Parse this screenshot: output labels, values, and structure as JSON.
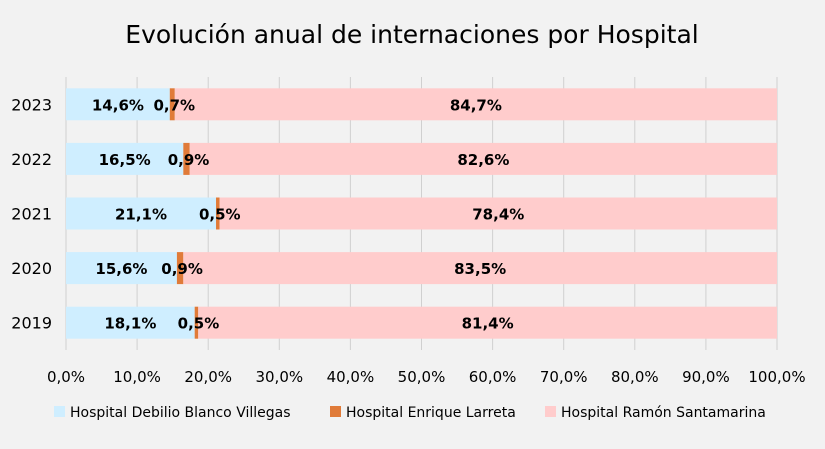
{
  "chart_data": {
    "type": "bar",
    "orientation": "horizontal",
    "stacked": "percent",
    "title": "Evolución anual de internaciones por Hospital",
    "categories": [
      "2023",
      "2022",
      "2021",
      "2020",
      "2019"
    ],
    "series": [
      {
        "name": "Hospital Debilio Blanco Villegas",
        "color": "#cfeeff",
        "values": [
          14.6,
          16.5,
          21.1,
          15.6,
          18.1
        ],
        "labels": [
          "14,6%",
          "16,5%",
          "21,1%",
          "15,6%",
          "18,1%"
        ]
      },
      {
        "name": "Hospital Enrique Larreta",
        "color": "#e07b39",
        "values": [
          0.7,
          0.9,
          0.5,
          0.9,
          0.5
        ],
        "labels": [
          "0,7%",
          "0,9%",
          "0,5%",
          "0,9%",
          "0,5%"
        ]
      },
      {
        "name": "Hospital Ramón Santamarina",
        "color": "#ffcccc",
        "values": [
          84.7,
          82.6,
          78.4,
          83.5,
          81.4
        ],
        "labels": [
          "84,7%",
          "82,6%",
          "78,4%",
          "83,5%",
          "81,4%"
        ]
      }
    ],
    "xlim": [
      0,
      100
    ],
    "x_ticks": [
      "0,0%",
      "10,0%",
      "20,0%",
      "30,0%",
      "40,0%",
      "50,0%",
      "60,0%",
      "70,0%",
      "80,0%",
      "90,0%",
      "100,0%"
    ],
    "grid": true,
    "legend_position": "bottom"
  }
}
